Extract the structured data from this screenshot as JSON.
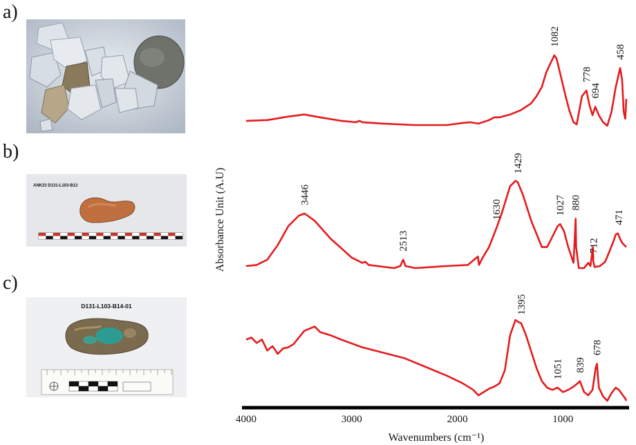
{
  "panels": {
    "a": {
      "label": "a)"
    },
    "b": {
      "label": "b)",
      "caption": "ANK23 D131-L103-B13"
    },
    "c": {
      "label": "c)",
      "caption": "D131-L103-B14-01"
    }
  },
  "colors": {
    "spectrum": "#e41a1c",
    "axis": "#000000",
    "text": "#111111"
  },
  "chart_data": {
    "type": "line",
    "title": "",
    "xlabel": "Wavenumbers (cm⁻¹)",
    "ylabel": "Absorbance Unit (A.U)",
    "xlim": [
      4000,
      400
    ],
    "x_reversed": true,
    "xticks": [
      4000,
      3000,
      2000,
      1000
    ],
    "yticks": [],
    "grid": false,
    "series": [
      {
        "panel": "a",
        "points": [
          [
            4000,
            0.07
          ],
          [
            3800,
            0.08
          ],
          [
            3600,
            0.13
          ],
          [
            3450,
            0.16
          ],
          [
            3300,
            0.12
          ],
          [
            3100,
            0.07
          ],
          [
            2960,
            0.05
          ],
          [
            2925,
            0.07
          ],
          [
            2900,
            0.05
          ],
          [
            2700,
            0.03
          ],
          [
            2400,
            0.01
          ],
          [
            2100,
            0.01
          ],
          [
            1950,
            0.04
          ],
          [
            1880,
            0.05
          ],
          [
            1800,
            0.03
          ],
          [
            1700,
            0.08
          ],
          [
            1650,
            0.12
          ],
          [
            1600,
            0.12
          ],
          [
            1500,
            0.16
          ],
          [
            1400,
            0.22
          ],
          [
            1300,
            0.32
          ],
          [
            1250,
            0.42
          ],
          [
            1200,
            0.55
          ],
          [
            1160,
            0.75
          ],
          [
            1120,
            0.88
          ],
          [
            1082,
            1.0
          ],
          [
            1060,
            0.95
          ],
          [
            1020,
            0.7
          ],
          [
            980,
            0.45
          ],
          [
            940,
            0.22
          ],
          [
            900,
            0.05
          ],
          [
            870,
            0.02
          ],
          [
            820,
            0.42
          ],
          [
            778,
            0.5
          ],
          [
            750,
            0.3
          ],
          [
            720,
            0.15
          ],
          [
            694,
            0.27
          ],
          [
            660,
            0.15
          ],
          [
            620,
            0.05
          ],
          [
            580,
            0.0
          ],
          [
            540,
            0.2
          ],
          [
            500,
            0.55
          ],
          [
            458,
            0.82
          ],
          [
            440,
            0.65
          ],
          [
            425,
            0.2
          ],
          [
            410,
            0.1
          ],
          [
            400,
            0.38
          ]
        ]
      },
      {
        "panel": "b",
        "points": [
          [
            4000,
            0.02
          ],
          [
            3900,
            0.03
          ],
          [
            3800,
            0.08
          ],
          [
            3700,
            0.22
          ],
          [
            3600,
            0.4
          ],
          [
            3500,
            0.5
          ],
          [
            3446,
            0.52
          ],
          [
            3350,
            0.45
          ],
          [
            3200,
            0.28
          ],
          [
            3000,
            0.1
          ],
          [
            2900,
            0.05
          ],
          [
            2870,
            0.06
          ],
          [
            2840,
            0.03
          ],
          [
            2600,
            0.0
          ],
          [
            2540,
            0.02
          ],
          [
            2513,
            0.08
          ],
          [
            2490,
            0.02
          ],
          [
            2400,
            0.0
          ],
          [
            2100,
            0.02
          ],
          [
            1900,
            0.03
          ],
          [
            1805,
            0.11
          ],
          [
            1795,
            0.03
          ],
          [
            1760,
            0.1
          ],
          [
            1700,
            0.2
          ],
          [
            1630,
            0.38
          ],
          [
            1580,
            0.52
          ],
          [
            1500,
            0.78
          ],
          [
            1450,
            0.83
          ],
          [
            1429,
            0.82
          ],
          [
            1380,
            0.7
          ],
          [
            1300,
            0.45
          ],
          [
            1200,
            0.2
          ],
          [
            1150,
            0.2
          ],
          [
            1100,
            0.3
          ],
          [
            1050,
            0.4
          ],
          [
            1027,
            0.42
          ],
          [
            990,
            0.35
          ],
          [
            950,
            0.2
          ],
          [
            900,
            0.05
          ],
          [
            885,
            0.35
          ],
          [
            880,
            0.47
          ],
          [
            875,
            0.2
          ],
          [
            850,
            0.0
          ],
          [
            800,
            0.0
          ],
          [
            760,
            0.05
          ],
          [
            740,
            0.02
          ],
          [
            716,
            0.2
          ],
          [
            712,
            0.06
          ],
          [
            700,
            0.01
          ],
          [
            650,
            0.02
          ],
          [
            600,
            0.06
          ],
          [
            560,
            0.16
          ],
          [
            520,
            0.26
          ],
          [
            500,
            0.32
          ],
          [
            480,
            0.33
          ],
          [
            460,
            0.28
          ],
          [
            440,
            0.24
          ],
          [
            400,
            0.2
          ]
        ]
      },
      {
        "panel": "c",
        "points": [
          [
            4000,
            0.56
          ],
          [
            3950,
            0.58
          ],
          [
            3900,
            0.53
          ],
          [
            3850,
            0.56
          ],
          [
            3800,
            0.46
          ],
          [
            3750,
            0.5
          ],
          [
            3700,
            0.43
          ],
          [
            3650,
            0.48
          ],
          [
            3600,
            0.49
          ],
          [
            3550,
            0.52
          ],
          [
            3500,
            0.58
          ],
          [
            3450,
            0.64
          ],
          [
            3400,
            0.66
          ],
          [
            3350,
            0.68
          ],
          [
            3300,
            0.63
          ],
          [
            3200,
            0.6
          ],
          [
            3100,
            0.56
          ],
          [
            2900,
            0.49
          ],
          [
            2700,
            0.44
          ],
          [
            2500,
            0.39
          ],
          [
            2400,
            0.35
          ],
          [
            2300,
            0.31
          ],
          [
            2100,
            0.23
          ],
          [
            1950,
            0.16
          ],
          [
            1850,
            0.1
          ],
          [
            1800,
            0.05
          ],
          [
            1750,
            0.08
          ],
          [
            1700,
            0.11
          ],
          [
            1650,
            0.13
          ],
          [
            1600,
            0.16
          ],
          [
            1550,
            0.28
          ],
          [
            1500,
            0.6
          ],
          [
            1450,
            0.74
          ],
          [
            1420,
            0.72
          ],
          [
            1395,
            0.71
          ],
          [
            1350,
            0.6
          ],
          [
            1300,
            0.45
          ],
          [
            1250,
            0.3
          ],
          [
            1200,
            0.18
          ],
          [
            1150,
            0.12
          ],
          [
            1100,
            0.1
          ],
          [
            1051,
            0.12
          ],
          [
            1000,
            0.08
          ],
          [
            950,
            0.1
          ],
          [
            900,
            0.13
          ],
          [
            860,
            0.16
          ],
          [
            839,
            0.18
          ],
          [
            800,
            0.08
          ],
          [
            760,
            0.05
          ],
          [
            720,
            0.1
          ],
          [
            690,
            0.3
          ],
          [
            678,
            0.34
          ],
          [
            660,
            0.12
          ],
          [
            620,
            0.04
          ],
          [
            580,
            0.0
          ],
          [
            540,
            0.07
          ],
          [
            500,
            0.12
          ],
          [
            470,
            0.1
          ],
          [
            440,
            0.06
          ],
          [
            410,
            0.02
          ],
          [
            400,
            0.0
          ]
        ]
      }
    ],
    "annotations": [
      {
        "panel": "a",
        "label": "1082",
        "x": 1082
      },
      {
        "panel": "a",
        "label": "778",
        "x": 778
      },
      {
        "panel": "a",
        "label": "694",
        "x": 694
      },
      {
        "panel": "a",
        "label": "458",
        "x": 458
      },
      {
        "panel": "b",
        "label": "3446",
        "x": 3446
      },
      {
        "panel": "b",
        "label": "2513",
        "x": 2513
      },
      {
        "panel": "b",
        "label": "1630",
        "x": 1630
      },
      {
        "panel": "b",
        "label": "1429",
        "x": 1429
      },
      {
        "panel": "b",
        "label": "1027",
        "x": 1027
      },
      {
        "panel": "b",
        "label": "880",
        "x": 880
      },
      {
        "panel": "b",
        "label": "712",
        "x": 712
      },
      {
        "panel": "b",
        "label": "471",
        "x": 471
      },
      {
        "panel": "c",
        "label": "1395",
        "x": 1395
      },
      {
        "panel": "c",
        "label": "1051",
        "x": 1051
      },
      {
        "panel": "c",
        "label": "839",
        "x": 839
      },
      {
        "panel": "c",
        "label": "678",
        "x": 678
      }
    ]
  }
}
